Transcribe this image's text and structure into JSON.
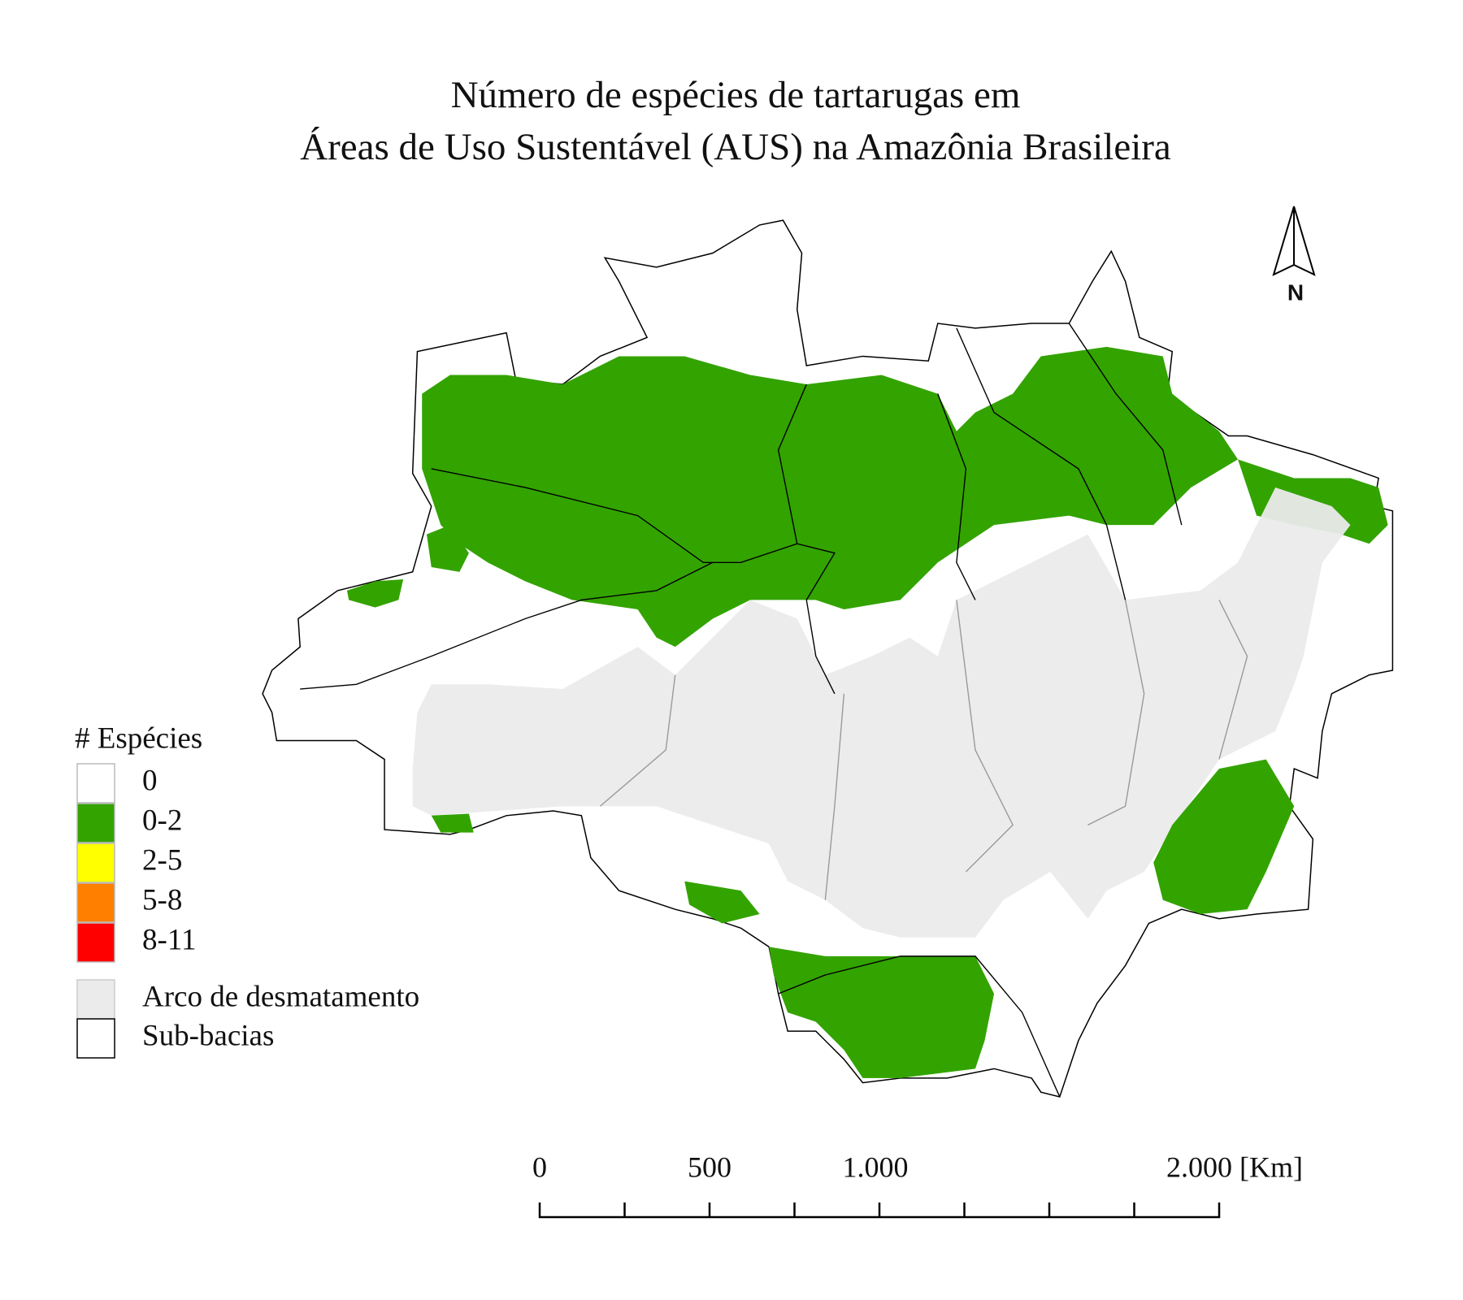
{
  "title": [
    "Número de espécies de tartarugas em",
    "Áreas de Uso Sustentável (AUS) na Amazônia Brasileira"
  ],
  "legend": {
    "title": "# Espécies",
    "classes": [
      {
        "label": "0",
        "color": "#ffffff"
      },
      {
        "label": "0-2",
        "color": "#33a300"
      },
      {
        "label": "2-5",
        "color": "#ffff00"
      },
      {
        "label": "5-8",
        "color": "#ff7f00"
      },
      {
        "label": "8-11",
        "color": "#ff0000"
      }
    ],
    "layers": [
      {
        "label": "Arco de desmatamento",
        "color": "#ebebeb"
      },
      {
        "label": "Sub-bacias",
        "color": "#ffffff"
      }
    ]
  },
  "scale_bar": {
    "labels": [
      "0",
      "500",
      "1.000",
      "2.000 [Km]"
    ]
  },
  "north_arrow": "N"
}
